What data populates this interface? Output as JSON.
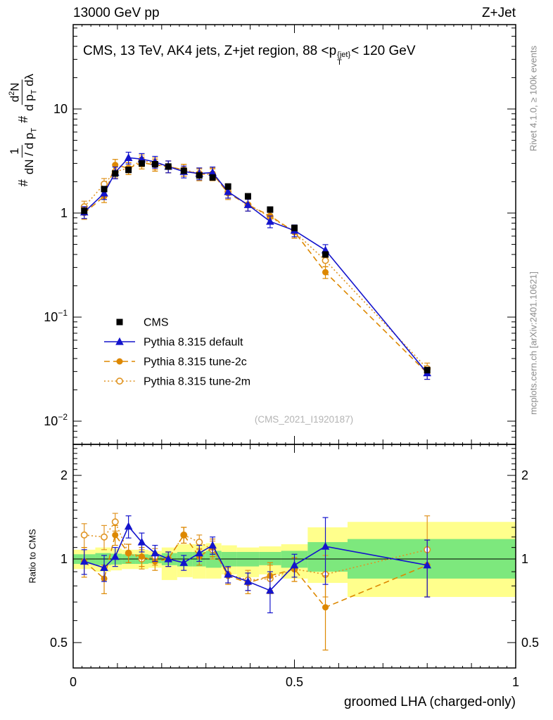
{
  "header": {
    "left": "13000 GeV pp",
    "right": "Z+Jet"
  },
  "side_notes": {
    "top_right": "Rivet 4.1.0, ≥ 100k events",
    "bottom_right": "mcplots.cern.ch [arXiv:2401.10621]"
  },
  "panel_title": {
    "pre": "CMS, 13 TeV, AK4 jets, Z+jet region, 88 <p",
    "sup": "{jet}",
    "sub": "T",
    "post": "< 120 GeV"
  },
  "watermark": "(CMS_2021_I1920187)",
  "ylabel_parts": {
    "hash1": "#",
    "f1_num": "1",
    "f1_den_pre": "dN / d p",
    "f1_den_sub": "T",
    "hash2": "#",
    "f2_num_pre": "d",
    "f2_num_sup": "2",
    "f2_num_post": "N",
    "f2_den_pre": "d p",
    "f2_den_sub": "T",
    "f2_den_post": " dλ"
  },
  "ratio_label": "Ratio to CMS",
  "xlabel": "groomed LHA (charged-only)",
  "colors": {
    "cms": "#000000",
    "pythia_default": "#1414cc",
    "tune_2c": "#dd8800",
    "tune_2m": "#e09422",
    "band_yellow": "#ffff8c",
    "band_green": "#7de87d",
    "gray_text": "#8c8c8c",
    "watermark": "#b4b4b4"
  },
  "chart_data": {
    "type": "line",
    "title": "CMS, 13 TeV, AK4 jets, Z+jet region, 88 <p_T^{jet}< 120 GeV",
    "xlabel": "groomed LHA (charged-only)",
    "ylabel": "# 1/(dN/dp_T) # d2N/(dp_T dlambda)",
    "ratio_ylabel": "Ratio to CMS",
    "x_range": [
      0,
      1
    ],
    "y_scale": "log",
    "ylim_main": [
      0.006,
      64
    ],
    "ylim_ratio": [
      0.405,
      2.59
    ],
    "xticks": [
      0,
      0.5,
      1
    ],
    "main_yticks": [
      10,
      1,
      0.1,
      0.01
    ],
    "ratio_yticks": [
      2,
      1,
      0.5
    ],
    "legend_position": "left-middle",
    "x": [
      0.025,
      0.07,
      0.095,
      0.125,
      0.155,
      0.185,
      0.215,
      0.25,
      0.285,
      0.315,
      0.35,
      0.395,
      0.445,
      0.5,
      0.57,
      0.8
    ],
    "series": [
      {
        "name": "CMS",
        "marker": "square-filled",
        "color": "#000000",
        "line": "none",
        "rel_err": 0.06,
        "values": [
          1.05,
          1.7,
          2.4,
          2.6,
          3.0,
          2.95,
          2.8,
          2.55,
          2.3,
          2.2,
          1.8,
          1.45,
          1.08,
          0.72,
          0.4,
          0.031
        ]
      },
      {
        "name": "Pythia 8.315 default",
        "marker": "triangle-filled",
        "color": "#1414cc",
        "line": "solid",
        "rel_err": 0.13,
        "values": [
          1.02,
          1.55,
          2.45,
          3.4,
          3.3,
          3.1,
          2.8,
          2.5,
          2.4,
          2.45,
          1.6,
          1.2,
          0.83,
          0.68,
          0.44,
          0.029
        ]
      },
      {
        "name": "Pythia 8.315 tune-2c",
        "marker": "circle-filled",
        "color": "#dd8800",
        "line": "dashed",
        "rel_err": 0.13,
        "values": [
          1.0,
          1.45,
          2.9,
          2.7,
          3.05,
          2.9,
          2.8,
          2.6,
          2.35,
          2.4,
          1.55,
          1.2,
          0.94,
          0.66,
          0.27,
          0.029
        ]
      },
      {
        "name": "Pythia 8.315 tune-2m",
        "marker": "circle-open",
        "color": "#e09422",
        "line": "dotted",
        "rel_err": 0.13,
        "values": [
          1.15,
          1.9,
          2.5,
          2.7,
          3.2,
          3.0,
          2.8,
          2.6,
          2.4,
          2.35,
          1.6,
          1.2,
          0.92,
          0.66,
          0.35,
          0.032
        ]
      }
    ],
    "ratio": {
      "reference": "CMS",
      "series": [
        {
          "name": "Pythia 8.315 default",
          "values": [
            0.98,
            0.93,
            1.02,
            1.31,
            1.15,
            1.05,
            1.0,
            0.97,
            1.05,
            1.12,
            0.88,
            0.83,
            0.77,
            0.95,
            1.11,
            0.95
          ],
          "err": [
            0.1,
            0.1,
            0.08,
            0.12,
            0.09,
            0.07,
            0.06,
            0.06,
            0.07,
            0.08,
            0.06,
            0.06,
            0.13,
            0.09,
            0.3,
            0.22
          ]
        },
        {
          "name": "Pythia 8.315 tune-2c",
          "values": [
            0.98,
            0.85,
            1.22,
            1.05,
            1.02,
            0.98,
            1.0,
            1.22,
            1.02,
            1.1,
            0.87,
            0.82,
            0.87,
            0.92,
            0.67,
            0.95
          ],
          "err": [
            0.12,
            0.1,
            0.1,
            0.08,
            0.08,
            0.07,
            0.06,
            0.08,
            0.07,
            0.08,
            0.06,
            0.07,
            0.1,
            0.09,
            0.2,
            0.22
          ]
        },
        {
          "name": "Pythia 8.315 tune-2m",
          "values": [
            1.22,
            1.2,
            1.36,
            1.05,
            1.0,
            1.02,
            1.0,
            1.22,
            1.15,
            1.08,
            0.88,
            0.84,
            0.85,
            0.92,
            0.88,
            1.08
          ],
          "err": [
            0.12,
            0.12,
            0.1,
            0.08,
            0.08,
            0.07,
            0.06,
            0.08,
            0.07,
            0.08,
            0.06,
            0.07,
            0.1,
            0.09,
            0.15,
            0.35
          ]
        }
      ],
      "bands": [
        {
          "x0": 0.0,
          "x1": 0.05,
          "yellow": [
            0.92,
            1.08
          ],
          "green": [
            0.96,
            1.04
          ]
        },
        {
          "x0": 0.05,
          "x1": 0.085,
          "yellow": [
            0.9,
            1.1
          ],
          "green": [
            0.95,
            1.05
          ]
        },
        {
          "x0": 0.085,
          "x1": 0.11,
          "yellow": [
            0.91,
            1.09
          ],
          "green": [
            0.955,
            1.045
          ]
        },
        {
          "x0": 0.11,
          "x1": 0.14,
          "yellow": [
            0.92,
            1.08
          ],
          "green": [
            0.96,
            1.04
          ]
        },
        {
          "x0": 0.14,
          "x1": 0.17,
          "yellow": [
            0.92,
            1.08
          ],
          "green": [
            0.96,
            1.04
          ]
        },
        {
          "x0": 0.17,
          "x1": 0.2,
          "yellow": [
            0.93,
            1.07
          ],
          "green": [
            0.965,
            1.035
          ]
        },
        {
          "x0": 0.2,
          "x1": 0.235,
          "yellow": [
            0.84,
            1.1
          ],
          "green": [
            0.95,
            1.05
          ]
        },
        {
          "x0": 0.235,
          "x1": 0.27,
          "yellow": [
            0.86,
            1.13
          ],
          "green": [
            0.94,
            1.06
          ]
        },
        {
          "x0": 0.27,
          "x1": 0.3,
          "yellow": [
            0.85,
            1.13
          ],
          "green": [
            0.94,
            1.06
          ]
        },
        {
          "x0": 0.3,
          "x1": 0.335,
          "yellow": [
            0.85,
            1.14
          ],
          "green": [
            0.93,
            1.07
          ]
        },
        {
          "x0": 0.335,
          "x1": 0.37,
          "yellow": [
            0.88,
            1.12
          ],
          "green": [
            0.94,
            1.06
          ]
        },
        {
          "x0": 0.37,
          "x1": 0.42,
          "yellow": [
            0.86,
            1.1
          ],
          "green": [
            0.94,
            1.06
          ]
        },
        {
          "x0": 0.42,
          "x1": 0.47,
          "yellow": [
            0.88,
            1.11
          ],
          "green": [
            0.95,
            1.06
          ]
        },
        {
          "x0": 0.47,
          "x1": 0.53,
          "yellow": [
            0.85,
            1.13
          ],
          "green": [
            0.93,
            1.07
          ]
        },
        {
          "x0": 0.53,
          "x1": 0.62,
          "yellow": [
            0.82,
            1.3
          ],
          "green": [
            0.9,
            1.15
          ]
        },
        {
          "x0": 0.62,
          "x1": 1.0,
          "yellow": [
            0.73,
            1.36
          ],
          "green": [
            0.85,
            1.18
          ]
        }
      ]
    }
  }
}
